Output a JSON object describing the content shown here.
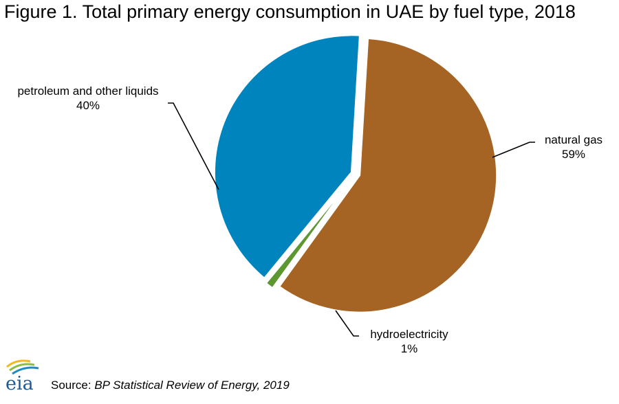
{
  "header": {
    "title": "Figure 1. Total primary energy consumption in UAE by fuel type, 2018"
  },
  "chart_data": {
    "type": "pie",
    "slices": [
      {
        "name": "natural gas",
        "value": 59,
        "label": "59%",
        "color": "#A56423"
      },
      {
        "name": "hydroelectricity",
        "value": 1,
        "label": "1%",
        "color": "#5D9732"
      },
      {
        "name": "petroleum and other liquids",
        "value": 40,
        "label": "40%",
        "color": "#0084BD"
      }
    ],
    "exploded": true
  },
  "footer": {
    "source_prefix": "Source: ",
    "source_title": "BP Statistical Review of Energy, 2019",
    "logo_text": "eia"
  }
}
